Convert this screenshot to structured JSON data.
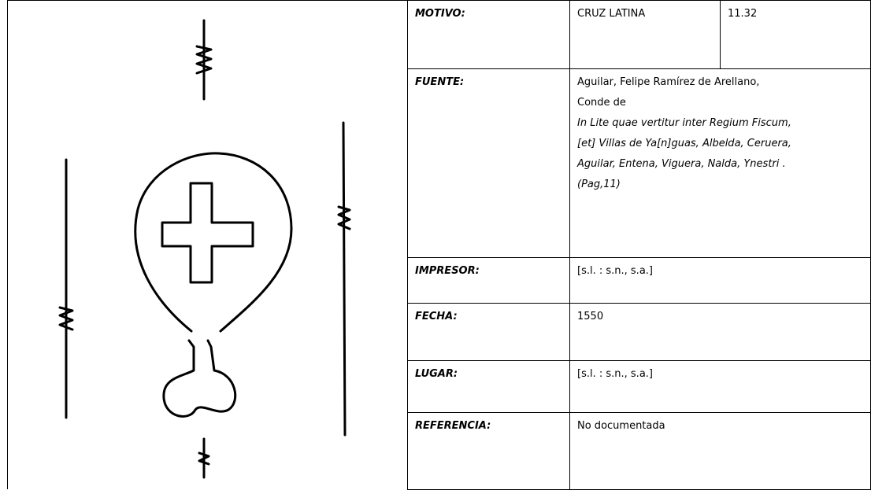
{
  "rows": [
    {
      "label": "MOTIVO:",
      "lines": [
        "CRUZ LATINA"
      ],
      "code": "11.32"
    },
    {
      "label": "FUENTE:",
      "lines": [
        "Aguilar, Felipe Ramírez de Arellano,",
        "Conde de",
        "In Lite quae vertitur inter Regium Fiscum,",
        "[et] Villas de Ya[n]guas, Albelda, Ceruera,",
        "Aguilar, Entena, Viguera, Nalda, Ynestri .",
        "(Pag,11)"
      ]
    },
    {
      "label": "IMPRESOR:",
      "lines": [
        "[s.l. : s.n., s.a.]"
      ]
    },
    {
      "label": "FECHA:",
      "lines": [
        "1550"
      ]
    },
    {
      "label": "LUGAR:",
      "lines": [
        "[s.l. : s.n., s.a.]"
      ]
    },
    {
      "label": "REFERENCIA:",
      "lines": [
        "No documentada"
      ]
    }
  ]
}
